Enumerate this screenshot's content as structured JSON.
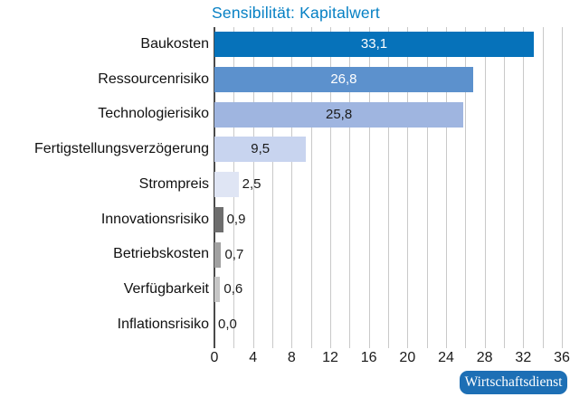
{
  "title": "Sensibilität: Kapitalwert",
  "title_color": "#0680c4",
  "chart_data": {
    "type": "bar",
    "orientation": "horizontal",
    "title": "Sensibilität: Kapitalwert",
    "categories": [
      "Baukosten",
      "Ressourcenrisiko",
      "Technologierisiko",
      "Fertigstellungsverzögerung",
      "Strompreis",
      "Innovationsrisiko",
      "Betriebskosten",
      "Verfügbarkeit",
      "Inflationsrisiko"
    ],
    "values": [
      33.1,
      26.8,
      25.8,
      9.5,
      2.5,
      0.9,
      0.7,
      0.6,
      0.0
    ],
    "value_labels": [
      "33,1",
      "26,8",
      "25,8",
      "9,5",
      "2,5",
      "0,9",
      "0,7",
      "0,6",
      "0,0"
    ],
    "bar_colors": [
      "#0672ba",
      "#5c91cd",
      "#9fb5e0",
      "#c8d4ef",
      "#dfe5f4",
      "#6e6e6e",
      "#a1a1a1",
      "#c6c6c6",
      "#c6c6c6"
    ],
    "value_text_colors": [
      "#ffffff",
      "#ffffff",
      "#1a1a1a",
      "#1a1a1a",
      "#1a1a1a",
      "#1a1a1a",
      "#1a1a1a",
      "#1a1a1a",
      "#1a1a1a"
    ],
    "xlabel": "",
    "ylabel": "",
    "xlim": [
      0,
      36
    ],
    "x_major_ticks": [
      0,
      4,
      8,
      12,
      16,
      20,
      24,
      28,
      32,
      36
    ],
    "x_minor_step": 2,
    "grid": "vertical minor gridlines every 2 units",
    "legend": "none"
  },
  "badge": {
    "label": "Wirtschaftsdienst",
    "bg_color": "#1d6fb5",
    "text_color": "#ffffff"
  }
}
